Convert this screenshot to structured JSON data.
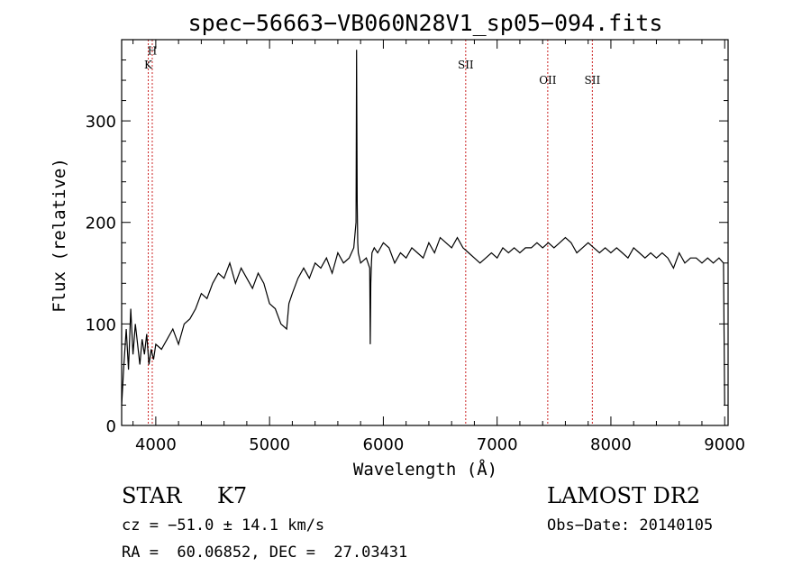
{
  "chart_data": {
    "type": "line",
    "title": "spec−56663−VB060N28V1_sp05−094.fits",
    "xlabel": "Wavelength (Å)",
    "ylabel": "Flux (relative)",
    "xlim": [
      3700,
      9030
    ],
    "ylim": [
      0,
      380
    ],
    "xticks": [
      4000,
      5000,
      6000,
      7000,
      8000,
      9000
    ],
    "yticks": [
      0,
      100,
      200,
      300
    ],
    "grid": false,
    "series": [
      {
        "x": [
          3700,
          3720,
          3740,
          3760,
          3780,
          3800,
          3820,
          3840,
          3860,
          3880,
          3900,
          3920,
          3940,
          3960,
          3980,
          4000,
          4050,
          4100,
          4150,
          4200,
          4250,
          4300,
          4350,
          4400,
          4450,
          4500,
          4550,
          4600,
          4650,
          4700,
          4750,
          4800,
          4850,
          4900,
          4950,
          5000,
          5050,
          5100,
          5150,
          5170,
          5200,
          5250,
          5300,
          5350,
          5400,
          5450,
          5500,
          5550,
          5600,
          5650,
          5700,
          5740,
          5760,
          5765,
          5770,
          5775,
          5780,
          5790,
          5800,
          5850,
          5880,
          5885,
          5890,
          5895,
          5900,
          5920,
          5950,
          6000,
          6050,
          6100,
          6150,
          6200,
          6250,
          6300,
          6350,
          6400,
          6450,
          6500,
          6550,
          6600,
          6650,
          6700,
          6750,
          6800,
          6850,
          6900,
          6950,
          7000,
          7050,
          7100,
          7150,
          7200,
          7250,
          7300,
          7350,
          7400,
          7450,
          7500,
          7550,
          7600,
          7650,
          7700,
          7750,
          7800,
          7850,
          7900,
          7950,
          8000,
          8050,
          8100,
          8150,
          8200,
          8250,
          8300,
          8350,
          8400,
          8450,
          8500,
          8550,
          8600,
          8650,
          8700,
          8750,
          8800,
          8850,
          8900,
          8950,
          8990,
          9000,
          9005
        ],
        "y": [
          20,
          60,
          95,
          55,
          115,
          70,
          100,
          80,
          60,
          85,
          70,
          90,
          60,
          75,
          65,
          80,
          75,
          85,
          95,
          80,
          100,
          105,
          115,
          130,
          125,
          140,
          150,
          145,
          160,
          140,
          155,
          145,
          135,
          150,
          140,
          120,
          115,
          100,
          95,
          120,
          130,
          145,
          155,
          145,
          160,
          155,
          165,
          150,
          170,
          160,
          165,
          175,
          200,
          370,
          220,
          180,
          170,
          165,
          160,
          165,
          155,
          80,
          140,
          160,
          170,
          175,
          170,
          180,
          175,
          160,
          170,
          165,
          175,
          170,
          165,
          180,
          170,
          185,
          180,
          175,
          185,
          175,
          170,
          165,
          160,
          165,
          170,
          165,
          175,
          170,
          175,
          170,
          175,
          175,
          180,
          175,
          180,
          175,
          180,
          185,
          180,
          170,
          175,
          180,
          175,
          170,
          175,
          170,
          175,
          170,
          165,
          175,
          170,
          165,
          170,
          165,
          170,
          165,
          155,
          170,
          160,
          165,
          165,
          160,
          165,
          160,
          165,
          160,
          20,
          20
        ]
      }
    ],
    "lines": [
      {
        "label": "K",
        "x": 3934,
        "label_y": 355
      },
      {
        "label": "H",
        "x": 3969,
        "label_y": 369
      },
      {
        "label": "SII",
        "x": 6724,
        "label_y": 355
      },
      {
        "label": "OII",
        "x": 7445,
        "label_y": 340
      },
      {
        "label": "SII",
        "x": 7837,
        "label_y": 340
      }
    ]
  },
  "info": {
    "class": "STAR",
    "subclass": "K7",
    "survey": "LAMOST DR2",
    "cz": "cz = −51.0 ± 14.1 km/s",
    "obs_date": "Obs−Date: 20140105",
    "coords": "RA =  60.06852, DEC =  27.03431"
  },
  "colors": {
    "spectrum": "#000000",
    "line_marker": "#cc2222"
  }
}
